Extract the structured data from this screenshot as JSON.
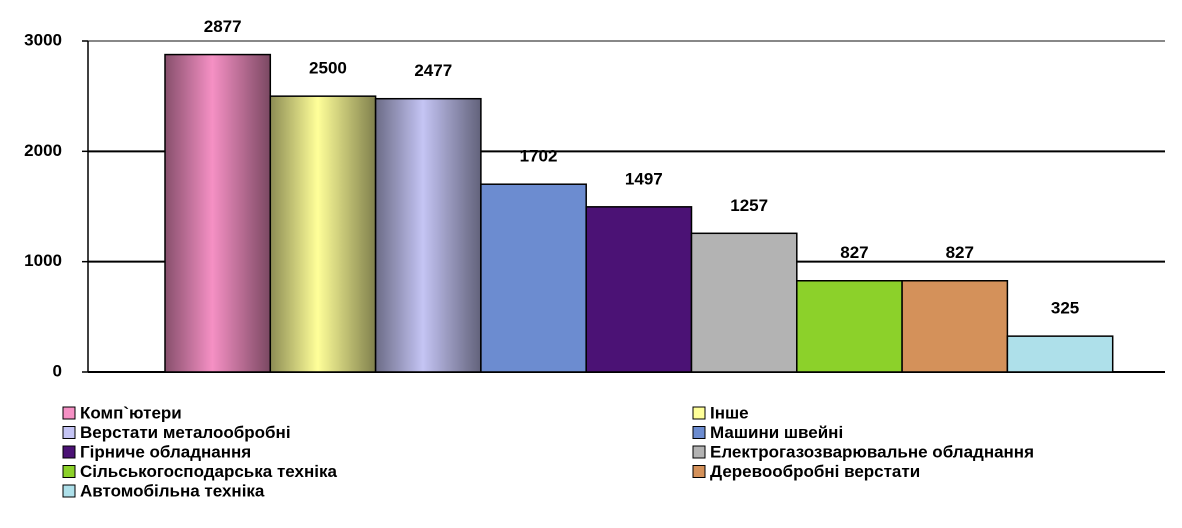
{
  "chart_data": {
    "type": "bar",
    "categories": [
      "Комп`ютери",
      "Інше",
      "Верстати металообробні",
      "Машини швейні",
      "Гірниче обладнання",
      "Електрогазозварювальне обладнання",
      "Сільськогосподарська техніка",
      "Деревообробні верстати",
      "Автомобільна техніка"
    ],
    "values": [
      2877,
      2500,
      2477,
      1702,
      1497,
      1257,
      827,
      827,
      325
    ],
    "colors": [
      "#f590c4",
      "#ffff99",
      "#c4c4f4",
      "#6c8cd0",
      "#4b1275",
      "#b3b3b3",
      "#8cd12a",
      "#d4915a",
      "#aee0ea"
    ],
    "ylim": [
      0,
      3000
    ],
    "yticks": [
      0,
      1000,
      2000,
      3000
    ],
    "grid": true
  }
}
